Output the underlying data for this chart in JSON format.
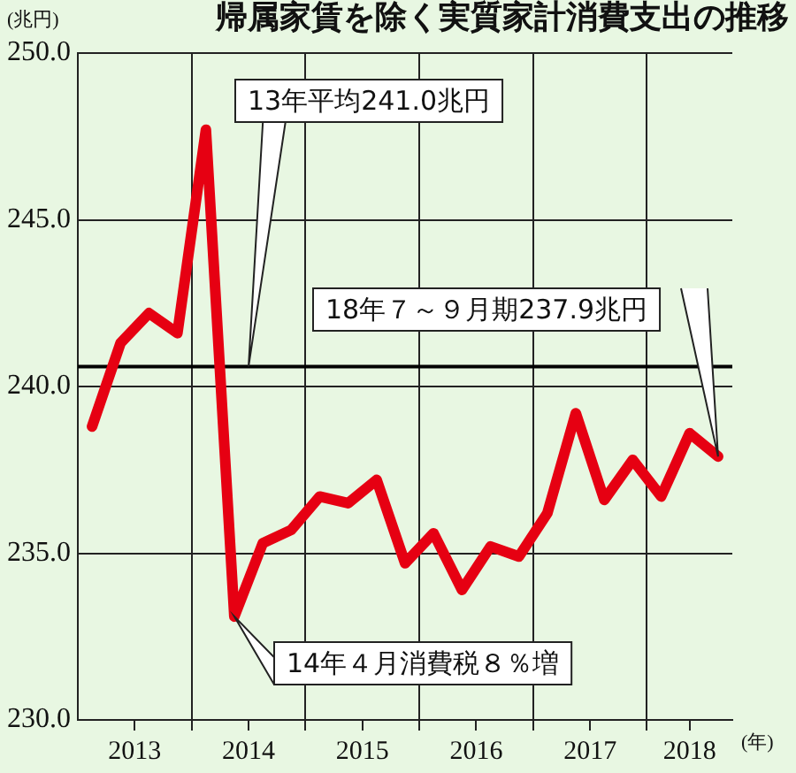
{
  "chart_data": {
    "type": "line",
    "title": "帰属家賃を除く実質家計消費支出の推移",
    "ylabel": "(兆円)",
    "xlabel": "(年)",
    "x": [
      2013.125,
      2013.375,
      2013.625,
      2013.875,
      2014.125,
      2014.375,
      2014.625,
      2014.875,
      2015.125,
      2015.375,
      2015.625,
      2015.875,
      2016.125,
      2016.375,
      2016.625,
      2016.875,
      2017.125,
      2017.375,
      2017.625,
      2017.875,
      2018.125,
      2018.375,
      2018.625
    ],
    "series": [
      {
        "color": "#e60012",
        "values": [
          238.8,
          241.3,
          242.2,
          241.6,
          247.7,
          233.1,
          235.3,
          235.7,
          236.7,
          236.5,
          237.2,
          234.7,
          235.6,
          233.9,
          235.2,
          234.9,
          236.2,
          239.2,
          236.6,
          237.8,
          236.7,
          238.6,
          237.9
        ]
      }
    ],
    "xlim": [
      2013,
      2018.75
    ],
    "xticks": [
      {
        "value": 2013.5,
        "label": "2013"
      },
      {
        "value": 2014,
        "label": null
      },
      {
        "value": 2014.5,
        "label": "2014"
      },
      {
        "value": 2015,
        "label": null
      },
      {
        "value": 2015.5,
        "label": "2015"
      },
      {
        "value": 2016,
        "label": null
      },
      {
        "value": 2016.5,
        "label": "2016"
      },
      {
        "value": 2017,
        "label": null
      },
      {
        "value": 2017.5,
        "label": "2017"
      },
      {
        "value": 2018,
        "label": null
      },
      {
        "value": 2018.375,
        "label": "2018"
      }
    ],
    "ylim": [
      230,
      250
    ],
    "yticks": [
      {
        "value": 230,
        "label": "230.0"
      },
      {
        "value": 235,
        "label": "235.0"
      },
      {
        "value": 240,
        "label": "240.0"
      },
      {
        "value": 245,
        "label": "245.0"
      },
      {
        "value": 250,
        "label": "250.0"
      }
    ],
    "grid": true,
    "legend": false,
    "marker": "none",
    "line_style": "solid",
    "ref_lines": [
      {
        "axis": "y",
        "value": 240.6,
        "color": "#000000"
      }
    ],
    "annotations": [
      {
        "text": "13年平均241.0兆円",
        "x": 2014.5,
        "y": 240.6
      },
      {
        "text": "18年７～９月期237.9兆円",
        "x": 2018.625,
        "y": 237.9
      },
      {
        "text": "14年４月消費税８％増",
        "x": 2014.375,
        "y": 233.1
      }
    ]
  }
}
